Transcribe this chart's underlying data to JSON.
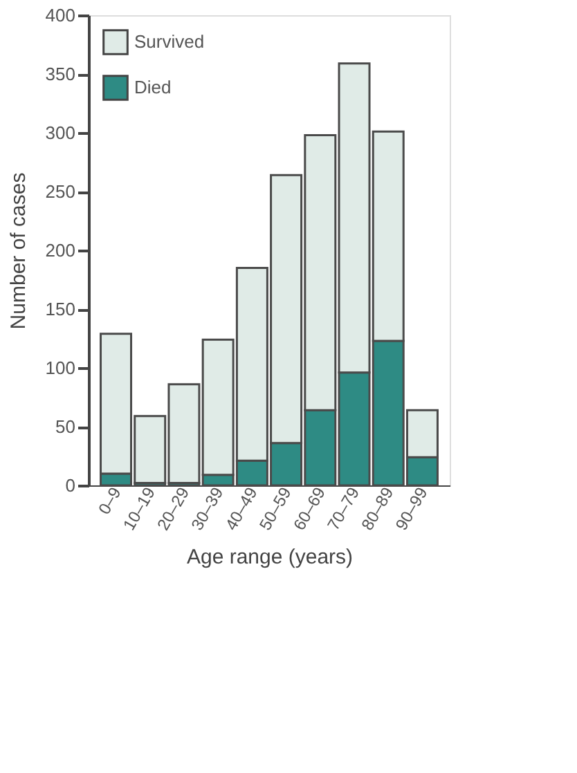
{
  "chart_data": {
    "type": "bar",
    "stacked": true,
    "xlabel": "Age range (years)",
    "ylabel": "Number of cases",
    "categories": [
      "0–9",
      "10–19",
      "20–29",
      "30–39",
      "40–49",
      "50–59",
      "60–69",
      "70–79",
      "80–89",
      "90–99"
    ],
    "series": [
      {
        "name": "Died",
        "color": "#2e8b84",
        "values": [
          10,
          2,
          2,
          9,
          21,
          36,
          64,
          96,
          123,
          24
        ]
      },
      {
        "name": "Survived",
        "color": "#e0ebe7",
        "values": [
          119,
          57,
          84,
          115,
          164,
          228,
          234,
          263,
          178,
          40
        ]
      }
    ],
    "ylim": [
      0,
      400
    ],
    "yticks": [
      0,
      50,
      100,
      150,
      200,
      250,
      300,
      350,
      400
    ],
    "grid": false,
    "legend": "top left"
  }
}
